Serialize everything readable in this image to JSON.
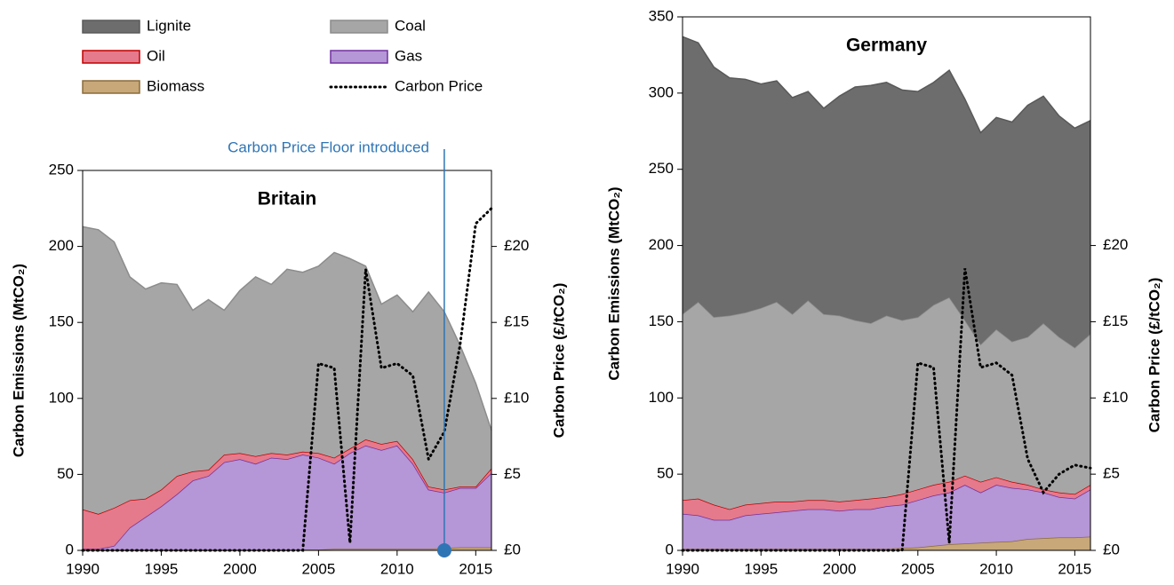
{
  "chart_data": [
    {
      "type": "area",
      "title": "Britain",
      "ylabel": "Carbon Emissions (MtCO₂)",
      "y2label": "Carbon Price (£/tCO₂)",
      "x": [
        1990,
        1991,
        1992,
        1993,
        1994,
        1995,
        1996,
        1997,
        1998,
        1999,
        2000,
        2001,
        2002,
        2003,
        2004,
        2005,
        2006,
        2007,
        2008,
        2009,
        2010,
        2011,
        2012,
        2013,
        2014,
        2015,
        2016
      ],
      "xlim": [
        1990,
        2016
      ],
      "xticks": [
        1990,
        1995,
        2000,
        2005,
        2010,
        2015
      ],
      "ylim": [
        0,
        250
      ],
      "yticks": [
        0,
        50,
        100,
        150,
        200,
        250
      ],
      "y2lim": [
        0,
        25
      ],
      "y2ticks": [
        {
          "value": 0,
          "label": "£0"
        },
        {
          "value": 5,
          "label": "£5"
        },
        {
          "value": 10,
          "label": "£10"
        },
        {
          "value": 15,
          "label": "£15"
        },
        {
          "value": 20,
          "label": "£20"
        }
      ],
      "annotation": {
        "text": "Carbon Price Floor introduced",
        "x": 2013,
        "color": "#2e75b6"
      },
      "series": [
        {
          "name": "Coal",
          "color": "#a6a6a6",
          "line_color": "#8c8c8c",
          "values": [
            186,
            187,
            175,
            147,
            138,
            136,
            126,
            106,
            112,
            95,
            107,
            118,
            111,
            122,
            118,
            123,
            135,
            125,
            114,
            92,
            96,
            97,
            128,
            117,
            93,
            68,
            25
          ]
        },
        {
          "name": "Oil",
          "color": "#e57a8c",
          "line_color": "#c00000",
          "values": [
            26,
            23,
            25,
            18,
            12,
            11,
            12,
            6,
            4,
            5,
            4,
            5,
            3,
            3,
            2,
            3,
            4,
            3,
            4,
            4,
            3,
            3,
            2,
            2,
            1,
            1,
            3
          ]
        },
        {
          "name": "Gas",
          "color": "#b596d6",
          "line_color": "#7030a0",
          "values": [
            1,
            1,
            3,
            15,
            22,
            29,
            37,
            46,
            49,
            58,
            60,
            57,
            61,
            60,
            62.5,
            60.5,
            56,
            63,
            68,
            65,
            68,
            56,
            39,
            36.5,
            39,
            39,
            49
          ]
        },
        {
          "name": "Biomass",
          "color": "#c8a878",
          "line_color": "#8b6b3a",
          "values": [
            0,
            0,
            0,
            0,
            0,
            0,
            0,
            0,
            0,
            0,
            0,
            0,
            0,
            0,
            0.5,
            0.5,
            1,
            1,
            1,
            1,
            1,
            1,
            1,
            1.5,
            2,
            2,
            2
          ]
        },
        {
          "name": "Carbon Price",
          "color": "#000000",
          "axis": "y2",
          "values": [
            0,
            0,
            0,
            0,
            0,
            0,
            0,
            0,
            0,
            0,
            0,
            0,
            0,
            0,
            0,
            12.3,
            12,
            0.5,
            18.5,
            12,
            12.3,
            11.5,
            6,
            7.8,
            13.5,
            21.5,
            22.5
          ]
        }
      ]
    },
    {
      "type": "area",
      "title": "Germany",
      "ylabel": "Carbon Emissions (MtCO₂)",
      "y2label": "Carbon Price (£/tCO₂)",
      "x": [
        1990,
        1991,
        1992,
        1993,
        1994,
        1995,
        1996,
        1997,
        1998,
        1999,
        2000,
        2001,
        2002,
        2003,
        2004,
        2005,
        2006,
        2007,
        2008,
        2009,
        2010,
        2011,
        2012,
        2013,
        2014,
        2015,
        2016
      ],
      "xlim": [
        1990,
        2016
      ],
      "xticks": [
        1990,
        1995,
        2000,
        2005,
        2010,
        2015
      ],
      "ylim": [
        0,
        350
      ],
      "yticks": [
        0,
        50,
        100,
        150,
        200,
        250,
        300,
        350
      ],
      "y2lim": [
        0,
        35
      ],
      "y2ticks": [
        {
          "value": 0,
          "label": "£0"
        },
        {
          "value": 5,
          "label": "£5"
        },
        {
          "value": 10,
          "label": "£10"
        },
        {
          "value": 15,
          "label": "£15"
        },
        {
          "value": 20,
          "label": "£20"
        }
      ],
      "series": [
        {
          "name": "Lignite",
          "color": "#6d6d6d",
          "line_color": "#595959",
          "values": [
            182,
            170,
            164,
            156,
            153,
            147,
            145,
            142,
            137,
            135,
            144,
            153,
            156,
            153,
            151,
            148,
            146,
            149,
            145,
            139,
            139,
            144,
            152,
            149,
            145,
            144,
            140
          ]
        },
        {
          "name": "Coal",
          "color": "#a6a6a6",
          "line_color": "#8c8c8c",
          "values": [
            122,
            129,
            123,
            127,
            126,
            128,
            131,
            123,
            131,
            122,
            122,
            118,
            115,
            119,
            114,
            113,
            118,
            121,
            102,
            90,
            97,
            92,
            97,
            109,
            102,
            96,
            99
          ]
        },
        {
          "name": "Oil",
          "color": "#e57a8c",
          "line_color": "#c00000",
          "values": [
            9,
            11,
            10,
            7,
            7,
            7,
            7,
            6,
            6,
            6,
            6,
            6,
            7,
            6,
            7,
            7,
            7,
            7,
            6,
            7,
            5,
            4,
            3,
            2,
            3,
            3,
            3
          ]
        },
        {
          "name": "Gas",
          "color": "#b596d6",
          "line_color": "#7030a0",
          "values": [
            23,
            22,
            19,
            19,
            22,
            23,
            24,
            25,
            26,
            26,
            25,
            26,
            26,
            28,
            28.5,
            31,
            33,
            34,
            38.5,
            33,
            37.5,
            35,
            32.5,
            30,
            26.5,
            25.5,
            31
          ]
        },
        {
          "name": "Biomass",
          "color": "#c8a878",
          "line_color": "#8b6b3a",
          "values": [
            1,
            1,
            1,
            1,
            1,
            1,
            1,
            1,
            1,
            1,
            1,
            1,
            1,
            1,
            1.5,
            2,
            3,
            4,
            4.5,
            5,
            5.5,
            6,
            7.5,
            8,
            8.5,
            8.5,
            9
          ]
        },
        {
          "name": "Carbon Price",
          "color": "#000000",
          "axis": "y2",
          "values": [
            0,
            0,
            0,
            0,
            0,
            0,
            0,
            0,
            0,
            0,
            0,
            0,
            0,
            0,
            0,
            12.3,
            12,
            0.5,
            18.5,
            12,
            12.3,
            11.5,
            6,
            3.8,
            5,
            5.6,
            5.4
          ]
        }
      ]
    }
  ]
}
